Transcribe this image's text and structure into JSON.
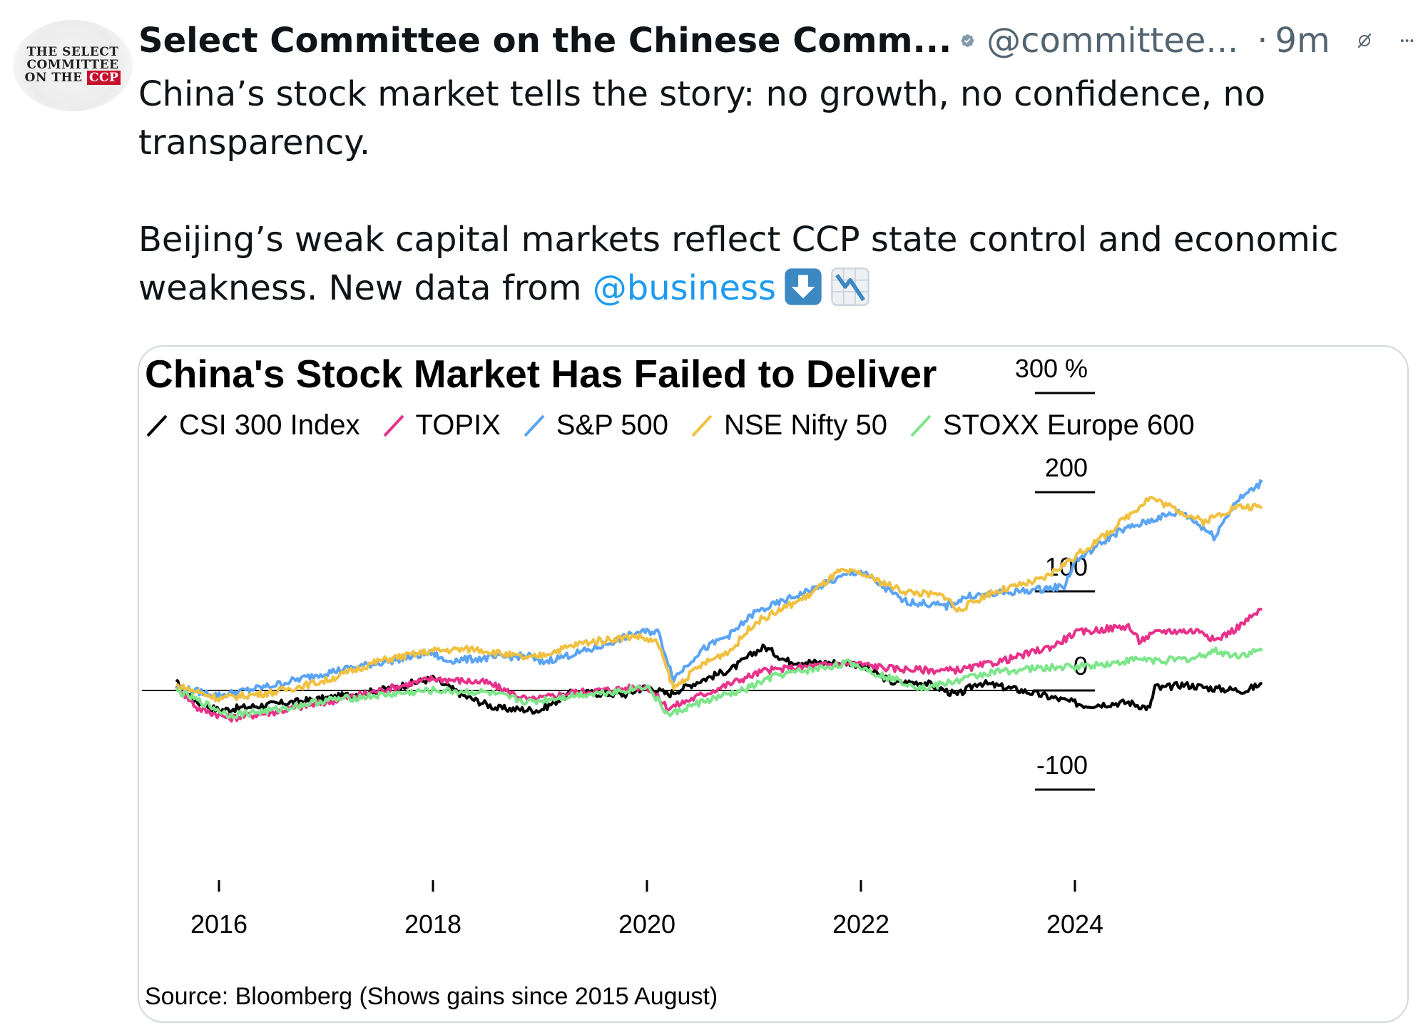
{
  "tweet": {
    "display_name": "Select Committee on the Chinese Comm...",
    "handle": "@committee...",
    "separator": "·",
    "time": "9m",
    "avatar_lines": [
      "THE SELECT",
      "COMMITTEE",
      "ON THE",
      "CCP"
    ],
    "paragraph1": "China’s stock market tells the story: no growth, no confidence, no transparency.",
    "paragraph2_prefix": "Beijing’s weak capital markets reflect CCP state control and economic weakness. New data from ",
    "mention": "@business",
    "emojis": [
      "down-arrow-icon",
      "chart-decreasing-icon"
    ],
    "colors": {
      "text": "#0f1419",
      "muted": "#536471",
      "link": "#1d9bf0",
      "verified": "#829aab",
      "card_border": "#cfd9de"
    }
  },
  "chart_data": {
    "type": "line",
    "title": "China's Stock Market Has Failed to Deliver",
    "source": "Source: Bloomberg (Shows gains since 2015 August)",
    "ylabel": "%",
    "ylim": [
      -100,
      300
    ],
    "yticks": [
      "300 %",
      "200",
      "100",
      "0",
      "-100"
    ],
    "ytick_values": [
      300,
      200,
      100,
      0,
      -100
    ],
    "xlim": [
      2015.6,
      2025.75
    ],
    "xticks": [
      "2016",
      "2018",
      "2020",
      "2022",
      "2024"
    ],
    "xtick_values": [
      2016,
      2018,
      2020,
      2022,
      2024
    ],
    "series": [
      {
        "name": "CSI 300 Index",
        "color": "#000000",
        "x": [
          2015.6,
          2015.8,
          2016.0,
          2016.5,
          2017.0,
          2017.5,
          2018.0,
          2018.3,
          2018.6,
          2019.0,
          2019.3,
          2019.8,
          2020.0,
          2020.2,
          2020.5,
          2020.8,
          2021.0,
          2021.1,
          2021.3,
          2021.6,
          2021.9,
          2022.0,
          2022.3,
          2022.6,
          2022.9,
          2023.1,
          2023.5,
          2023.9,
          2024.1,
          2024.5,
          2024.7,
          2024.75,
          2024.8,
          2025.0,
          2025.3,
          2025.6,
          2025.75
        ],
        "y": [
          8,
          -12,
          -20,
          -14,
          -8,
          0,
          12,
          -6,
          -18,
          -20,
          -2,
          -4,
          4,
          -4,
          10,
          22,
          38,
          44,
          30,
          28,
          28,
          25,
          8,
          8,
          -5,
          8,
          0,
          -10,
          -15,
          -12,
          -18,
          5,
          2,
          6,
          2,
          0,
          7
        ]
      },
      {
        "name": "TOPIX",
        "color": "#e8328a",
        "x": [
          2015.6,
          2015.8,
          2016.1,
          2016.5,
          2017.0,
          2017.5,
          2018.0,
          2018.5,
          2018.9,
          2019.3,
          2019.8,
          2020.0,
          2020.2,
          2020.5,
          2020.9,
          2021.1,
          2021.5,
          2021.9,
          2022.3,
          2022.8,
          2023.0,
          2023.4,
          2023.8,
          2024.0,
          2024.5,
          2024.6,
          2024.8,
          2025.2,
          2025.3,
          2025.5,
          2025.75
        ],
        "y": [
          5,
          -18,
          -28,
          -22,
          -12,
          0,
          12,
          8,
          -10,
          -2,
          2,
          4,
          -18,
          -5,
          12,
          20,
          24,
          28,
          22,
          20,
          22,
          32,
          45,
          58,
          65,
          50,
          60,
          60,
          50,
          62,
          82
        ]
      },
      {
        "name": "S&P 500",
        "color": "#5ba4f5",
        "x": [
          2015.6,
          2016.0,
          2016.5,
          2017.0,
          2017.5,
          2018.0,
          2018.1,
          2018.9,
          2019.0,
          2019.5,
          2019.9,
          2020.1,
          2020.25,
          2020.5,
          2020.8,
          2021.0,
          2021.5,
          2021.9,
          2022.0,
          2022.4,
          2022.8,
          2023.0,
          2023.5,
          2023.9,
          2024.0,
          2024.4,
          2024.8,
          2025.0,
          2025.25,
          2025.3,
          2025.5,
          2025.75
        ],
        "y": [
          3,
          -5,
          5,
          18,
          28,
          38,
          30,
          35,
          28,
          42,
          58,
          60,
          12,
          40,
          58,
          78,
          100,
          118,
          120,
          90,
          85,
          95,
          100,
          105,
          130,
          160,
          175,
          180,
          160,
          155,
          190,
          210
        ]
      },
      {
        "name": "NSE Nifty 50",
        "color": "#f0c040",
        "x": [
          2015.6,
          2016.0,
          2016.5,
          2017.0,
          2017.5,
          2018.0,
          2018.4,
          2018.9,
          2019.4,
          2019.9,
          2020.1,
          2020.25,
          2020.5,
          2020.8,
          2021.0,
          2021.5,
          2021.8,
          2022.0,
          2022.4,
          2022.8,
          2022.9,
          2023.2,
          2023.7,
          2024.0,
          2024.3,
          2024.7,
          2025.0,
          2025.2,
          2025.5,
          2025.75
        ],
        "y": [
          5,
          -8,
          -2,
          10,
          30,
          40,
          42,
          32,
          48,
          55,
          48,
          2,
          25,
          42,
          68,
          95,
          120,
          118,
          100,
          95,
          80,
          98,
          112,
          135,
          158,
          195,
          180,
          170,
          185,
          185
        ]
      },
      {
        "name": "STOXX Europe 600",
        "color": "#7de58a",
        "x": [
          2015.6,
          2015.9,
          2016.1,
          2016.5,
          2017.0,
          2017.5,
          2018.0,
          2018.5,
          2018.9,
          2019.3,
          2019.8,
          2020.0,
          2020.2,
          2020.5,
          2020.9,
          2021.2,
          2021.6,
          2021.9,
          2022.2,
          2022.6,
          2022.9,
          2023.2,
          2023.6,
          2024.0,
          2024.4,
          2024.6,
          2024.8,
          2025.1,
          2025.3,
          2025.5,
          2025.75
        ],
        "y": [
          0,
          -15,
          -25,
          -20,
          -10,
          -5,
          0,
          -2,
          -12,
          -5,
          0,
          5,
          -25,
          -12,
          0,
          15,
          22,
          28,
          15,
          2,
          10,
          18,
          22,
          24,
          28,
          32,
          30,
          32,
          40,
          35,
          40
        ]
      }
    ],
    "zero_line": 0
  }
}
